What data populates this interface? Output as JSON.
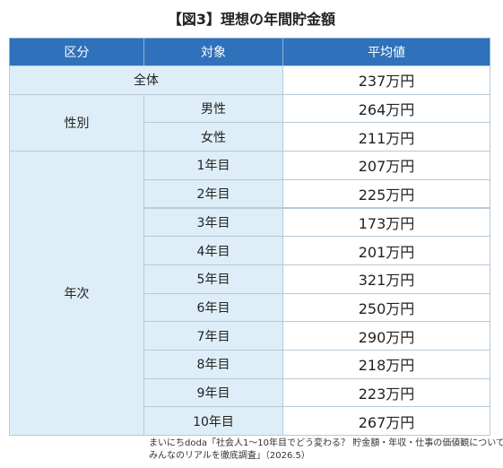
{
  "title": "【図3】理想の年間貯金額",
  "table": {
    "header": [
      "区分",
      "対象",
      "平均値"
    ],
    "overall": {
      "label": "全体",
      "value": "237万円"
    },
    "groups": [
      {
        "label": "性別",
        "items": [
          {
            "label": "男性",
            "value": "264万円"
          },
          {
            "label": "女性",
            "value": "211万円"
          }
        ]
      },
      {
        "label": "年次",
        "items": [
          {
            "label": "1年目",
            "value": "207万円"
          },
          {
            "label": "2年目",
            "value": "225万円"
          },
          {
            "label": "3年目",
            "value": "173万円"
          },
          {
            "label": "4年目",
            "value": "201万円"
          },
          {
            "label": "5年目",
            "value": "321万円"
          },
          {
            "label": "6年目",
            "value": "250万円"
          },
          {
            "label": "7年目",
            "value": "290万円"
          },
          {
            "label": "8年目",
            "value": "218万円"
          },
          {
            "label": "9年目",
            "value": "223万円"
          },
          {
            "label": "10年目",
            "value": "267万円"
          }
        ]
      }
    ]
  },
  "source": [
    "まいにちdoda「社会人1～10年目でどう変わる？ 貯金額・年収・仕事の価値観について、",
    "みんなのリアルを徹底調査」（2026.5）"
  ]
}
